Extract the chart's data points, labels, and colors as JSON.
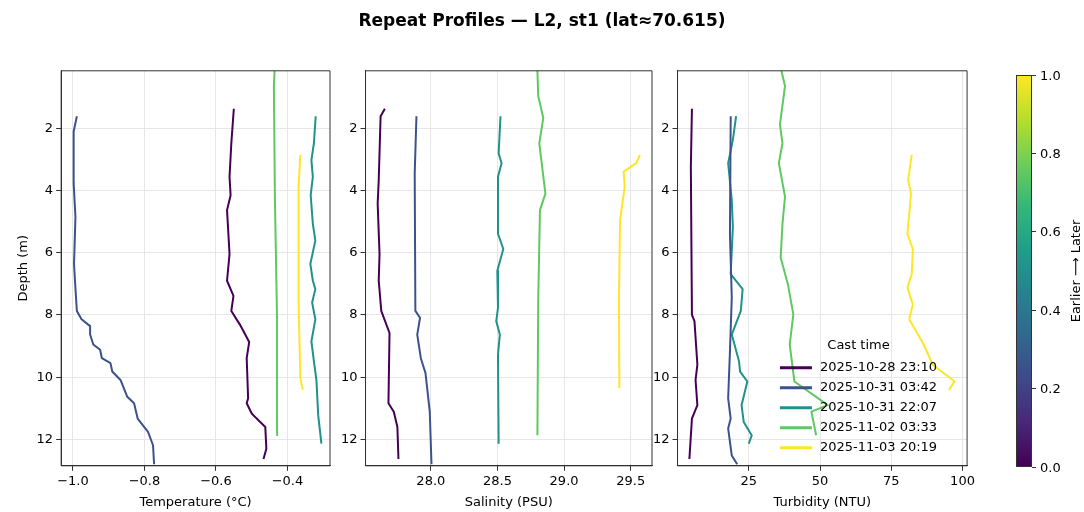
{
  "chart_data": [
    {
      "type": "line",
      "xlabel": "Temperature (°C)",
      "ylabel": "Depth (m)",
      "xlim": [
        -1.033,
        -0.281
      ],
      "ylim": [
        12.85,
        0.15
      ],
      "xticks": [
        {
          "value": -1,
          "label": "−1.0"
        },
        {
          "value": -0.8,
          "label": "−0.8"
        },
        {
          "value": -0.6,
          "label": "−0.6"
        },
        {
          "value": -0.4,
          "label": "−0.4"
        }
      ],
      "yticks": [
        2,
        4,
        6,
        8,
        10,
        12
      ],
      "grid": true,
      "series": [
        {
          "color": "#440154",
          "x": [
            -0.55,
            -0.557,
            -0.562,
            -0.559,
            -0.569,
            -0.562,
            -0.569,
            -0.551,
            -0.557,
            -0.533,
            -0.507,
            -0.514,
            -0.51,
            -0.514,
            -0.5,
            -0.462,
            -0.459,
            -0.467
          ],
          "values": [
            1.37,
            2.48,
            3.56,
            4.15,
            4.63,
            6.04,
            6.9,
            7.39,
            7.87,
            8.31,
            8.87,
            9.39,
            10.68,
            10.84,
            11.17,
            11.6,
            12.3,
            12.63
          ]
        },
        {
          "color": "#3b528b",
          "x": [
            -0.989,
            -0.998,
            -0.998,
            -0.993,
            -0.997,
            -0.992,
            -0.989,
            -0.976,
            -0.952,
            -0.952,
            -0.943,
            -0.924,
            -0.919,
            -0.895,
            -0.89,
            -0.867,
            -0.848,
            -0.829,
            -0.819,
            -0.79,
            -0.776,
            -0.773
          ],
          "values": [
            1.61,
            2.1,
            3.77,
            4.85,
            6.36,
            7.33,
            7.87,
            8.14,
            8.36,
            8.63,
            8.95,
            9.12,
            9.39,
            9.55,
            9.82,
            10.09,
            10.63,
            10.84,
            11.33,
            11.76,
            12.19,
            12.8
          ]
        },
        {
          "color": "#21918c",
          "x": [
            -0.321,
            -0.326,
            -0.333,
            -0.329,
            -0.335,
            -0.329,
            -0.322,
            -0.336,
            -0.329,
            -0.322,
            -0.331,
            -0.322,
            -0.333,
            -0.326,
            -0.319,
            -0.314,
            -0.305
          ],
          "values": [
            1.61,
            2.48,
            3.02,
            3.56,
            4.15,
            5.07,
            5.61,
            6.36,
            6.9,
            7.17,
            7.6,
            8.14,
            8.85,
            9.49,
            10.09,
            11.22,
            12.14
          ]
        },
        {
          "color": "#5ec962",
          "x": [
            -0.436,
            -0.438,
            -0.435,
            -0.429,
            -0.429
          ],
          "values": [
            0.15,
            0.64,
            4.31,
            8.2,
            11.87
          ]
        },
        {
          "color": "#fde725",
          "x": [
            -0.364,
            -0.369,
            -0.369,
            -0.364,
            -0.357
          ],
          "values": [
            2.85,
            3.88,
            7.55,
            10.03,
            10.41
          ]
        }
      ]
    },
    {
      "type": "line",
      "title": "Repeat Profiles — L2, st1 (lat≈70.615)",
      "xlabel": "Salinity (PSU)",
      "xlim": [
        27.51,
        29.66
      ],
      "ylim": [
        12.85,
        0.15
      ],
      "xticks": [
        {
          "value": 28,
          "label": "28.0"
        },
        {
          "value": 28.5,
          "label": "28.5"
        },
        {
          "value": 29,
          "label": "29.0"
        },
        {
          "value": 29.5,
          "label": "29.5"
        }
      ],
      "yticks": [
        2,
        4,
        6,
        8,
        10,
        12
      ],
      "grid": true,
      "series": [
        {
          "color": "#440154",
          "x": [
            27.655,
            27.623,
            27.609,
            27.601,
            27.615,
            27.609,
            27.628,
            27.69,
            27.682,
            27.722,
            27.749,
            27.757
          ],
          "values": [
            1.37,
            1.61,
            3.66,
            4.42,
            6.04,
            6.9,
            7.87,
            8.58,
            10.84,
            11.11,
            11.6,
            12.63
          ]
        },
        {
          "color": "#3b528b",
          "x": [
            27.892,
            27.879,
            27.884,
            27.919,
            27.898,
            27.925,
            27.96,
            27.992,
            28.005
          ],
          "values": [
            1.61,
            3.45,
            7.87,
            8.09,
            8.63,
            9.39,
            9.87,
            11.11,
            12.8
          ]
        },
        {
          "color": "#21918c",
          "x": [
            28.523,
            28.509,
            28.531,
            28.504,
            28.504,
            28.544,
            28.499,
            28.504,
            28.491,
            28.518,
            28.504,
            28.509
          ],
          "values": [
            1.61,
            2.8,
            3.12,
            3.56,
            5.39,
            5.88,
            6.58,
            7.77,
            8.2,
            8.63,
            9.28,
            12.14
          ]
        },
        {
          "color": "#5ec962",
          "x": [
            28.8,
            28.806,
            28.844,
            28.814,
            28.86,
            28.819,
            28.806,
            28.8
          ],
          "values": [
            0.15,
            0.96,
            1.67,
            2.48,
            4.1,
            4.63,
            7.55,
            11.87
          ]
        },
        {
          "color": "#fde725",
          "x": [
            29.569,
            29.542,
            29.447,
            29.455,
            29.42,
            29.412,
            29.415
          ],
          "values": [
            2.85,
            3.12,
            3.39,
            3.88,
            4.96,
            7.55,
            10.36
          ]
        }
      ]
    },
    {
      "type": "line",
      "xlabel": "Turbidity (NTU)",
      "xlim": [
        0,
        101.6
      ],
      "ylim": [
        12.85,
        0.15
      ],
      "xticks": [
        25,
        50,
        75,
        100
      ],
      "yticks": [
        2,
        4,
        6,
        8,
        10,
        12
      ],
      "grid": true,
      "legend": "bottom right",
      "legend_title": "Cast time",
      "clabel": "Earlier ⟶ Later",
      "clim": [
        0,
        1
      ],
      "cticks": [
        {
          "value": 0,
          "label": "0.0"
        },
        {
          "value": 0.2,
          "label": "0.2"
        },
        {
          "value": 0.4,
          "label": "0.4"
        },
        {
          "value": 0.6,
          "label": "0.6"
        },
        {
          "value": 0.8,
          "label": "0.8"
        },
        {
          "value": 1,
          "label": "1.0"
        }
      ],
      "series": [
        {
          "name": "2025-10-28 23:10",
          "color": "#440154",
          "x": [
            5.05,
            4.67,
            5.05,
            5.94,
            6.96,
            6.32,
            6.96,
            5.05,
            4.16
          ],
          "values": [
            1.37,
            3.23,
            8.0,
            8.2,
            9.6,
            10.09,
            10.9,
            11.33,
            12.63
          ]
        },
        {
          "name": "2025-10-31 03:42",
          "color": "#3b528b",
          "x": [
            18.65,
            18.39,
            19.03,
            18.39,
            17.76,
            18.65,
            17.76,
            19.03,
            20.93
          ],
          "values": [
            1.61,
            5.39,
            7.44,
            9.17,
            10.68,
            11.33,
            11.65,
            12.52,
            12.8
          ]
        },
        {
          "name": "2025-10-31 22:07",
          "color": "#21918c",
          "x": [
            20.55,
            19.41,
            17.76,
            19.03,
            19.41,
            18.65,
            22.84,
            22.2,
            19.03,
            21.57,
            21.95,
            24.49,
            22.46,
            23.22,
            26.02,
            25
          ],
          "values": [
            1.61,
            2.37,
            3.12,
            4.31,
            5.17,
            6.69,
            7.17,
            7.87,
            8.63,
            9.49,
            9.82,
            10.14,
            10.9,
            11.44,
            11.87,
            12.14
          ]
        },
        {
          "name": "2025-11-02 03:33",
          "color": "#5ec962",
          "x": [
            36.44,
            37.71,
            35.93,
            36.82,
            35.55,
            37.71,
            36.82,
            36.18,
            38.72,
            40.63,
            39.36,
            41.01,
            52.7,
            46.98,
            48.63
          ],
          "values": [
            0.15,
            0.64,
            1.88,
            2.48,
            3.12,
            4.2,
            5.07,
            6.15,
            7.01,
            7.98,
            8.95,
            10.14,
            10.9,
            11.11,
            11.87
          ]
        },
        {
          "name": "2025-11-03 20:19",
          "color": "#fde725",
          "x": [
            82.18,
            80.91,
            81.93,
            80.66,
            82.56,
            82.18,
            80.66,
            82.56,
            81.29,
            86.37,
            89.55,
            96.54,
            97.17,
            95.27
          ],
          "values": [
            2.85,
            3.66,
            4.1,
            5.39,
            5.88,
            6.69,
            7.12,
            7.66,
            8.14,
            8.95,
            9.6,
            10.09,
            10.14,
            10.41
          ]
        }
      ]
    }
  ]
}
